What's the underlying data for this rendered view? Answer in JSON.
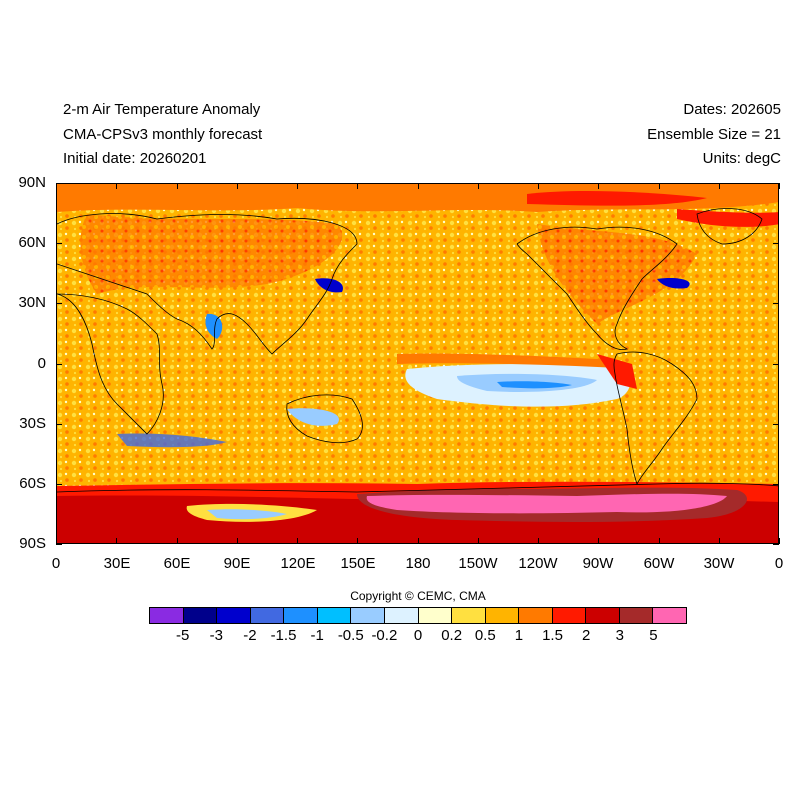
{
  "header": {
    "title": "2-m Air Temperature Anomaly",
    "model": "CMA-CPSv3 monthly forecast",
    "initial_date": "Initial date: 20260201",
    "dates": "Dates: 202605",
    "ensemble": "Ensemble Size = 21",
    "units": "Units: degC"
  },
  "axes": {
    "lat_labels": [
      "90N",
      "60N",
      "30N",
      "0",
      "30S",
      "60S",
      "90S"
    ],
    "lon_labels": [
      "0",
      "30E",
      "60E",
      "90E",
      "120E",
      "150E",
      "180",
      "150W",
      "120W",
      "90W",
      "60W",
      "30W",
      "0"
    ]
  },
  "map": {
    "projection": "cylindrical equidistant",
    "lon_range": [
      0,
      360
    ],
    "lat_range": [
      -90,
      90
    ],
    "background_level": "0.5 to 1",
    "features": [
      {
        "region": "Southern Ocean ring",
        "level": "2 to 3"
      },
      {
        "region": "Antarctica",
        "level": "3 to 5 and >5"
      },
      {
        "region": "Eastern tropical Pacific",
        "level": "-0.5 to -0.2"
      },
      {
        "region": "Peru coast",
        "level": "2 to 3"
      },
      {
        "region": "Arctic",
        "level": "1 to 1.5"
      },
      {
        "region": "Greenland",
        "level": "1.5 to 2"
      }
    ]
  },
  "colorbar": {
    "colors": [
      "#8a2be2",
      "#00008b",
      "#0000cd",
      "#4169e1",
      "#1e90ff",
      "#00bfff",
      "#99ccff",
      "#ddf2ff",
      "#ffffcc",
      "#ffe040",
      "#ffb400",
      "#ff7a00",
      "#ff1a00",
      "#cc0000",
      "#a52a2a",
      "#ff66b2"
    ],
    "labels": [
      "-5",
      "-3",
      "-2",
      "-1.5",
      "-1",
      "-0.5",
      "-0.2",
      "0",
      "0.2",
      "0.5",
      "1",
      "1.5",
      "2",
      "3",
      "5"
    ]
  },
  "copyright": "Copyright © CEMC, CMA"
}
